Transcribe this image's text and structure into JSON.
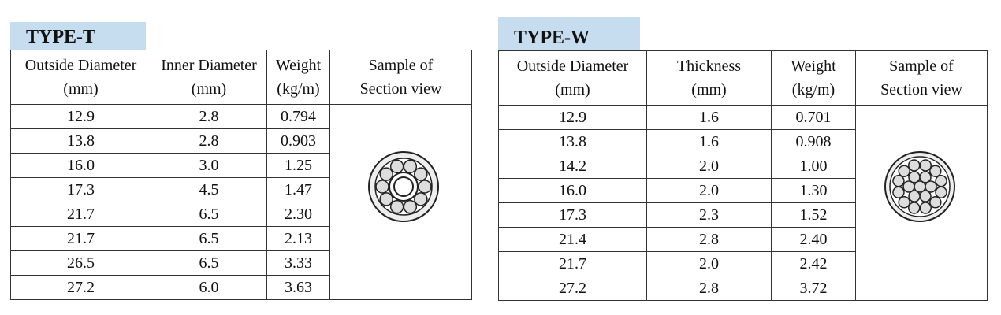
{
  "tables": [
    {
      "title": "TYPE-T",
      "headers": [
        [
          "Outside Diameter",
          "(mm)"
        ],
        [
          "Inner Diameter",
          "(mm)"
        ],
        [
          "Weight",
          "(kg/m)"
        ],
        [
          "Sample of",
          "Section view"
        ]
      ],
      "rows": [
        [
          "12.9",
          "2.8",
          "0.794"
        ],
        [
          "13.8",
          "2.8",
          "0.903"
        ],
        [
          "16.0",
          "3.0",
          "1.25"
        ],
        [
          "17.3",
          "4.5",
          "1.47"
        ],
        [
          "21.7",
          "6.5",
          "2.30"
        ],
        [
          "21.7",
          "6.5",
          "2.13"
        ],
        [
          "26.5",
          "6.5",
          "3.33"
        ],
        [
          "27.2",
          "6.0",
          "3.63"
        ]
      ]
    },
    {
      "title": "TYPE-W",
      "headers": [
        [
          "Outside Diameter",
          "(mm)"
        ],
        [
          "Thickness",
          "(mm)"
        ],
        [
          "Weight",
          "(kg/m)"
        ],
        [
          "Sample of",
          "Section view"
        ]
      ],
      "rows": [
        [
          "12.9",
          "1.6",
          "0.701"
        ],
        [
          "13.8",
          "1.6",
          "0.908"
        ],
        [
          "14.2",
          "2.0",
          "1.00"
        ],
        [
          "16.0",
          "2.0",
          "1.30"
        ],
        [
          "17.3",
          "2.3",
          "1.52"
        ],
        [
          "21.4",
          "2.8",
          "2.40"
        ],
        [
          "21.7",
          "2.0",
          "2.42"
        ],
        [
          "27.2",
          "2.8",
          "3.72"
        ]
      ]
    }
  ]
}
